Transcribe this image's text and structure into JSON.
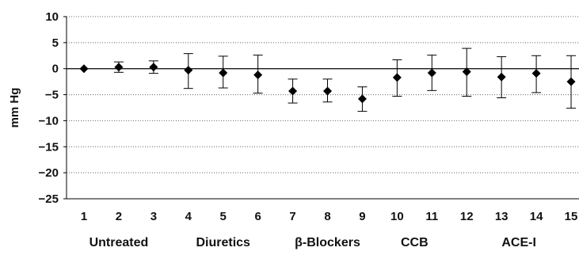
{
  "chart_data": {
    "type": "scatter",
    "title": "",
    "xlabel": "",
    "ylabel": "mm Hg",
    "ylim": [
      -25,
      10
    ],
    "yticks": [
      10,
      5,
      0,
      -5,
      -10,
      -15,
      -20,
      -25
    ],
    "ytick_labels": [
      "10",
      "5",
      "0",
      "−5",
      "−10",
      "−15",
      "−20",
      "−25"
    ],
    "grid": "horizontal dotted lines",
    "categories": [
      "1",
      "2",
      "3",
      "4",
      "5",
      "6",
      "7",
      "8",
      "9",
      "10",
      "11",
      "12",
      "13",
      "14",
      "15"
    ],
    "values": [
      0.0,
      0.3,
      0.3,
      -0.3,
      -0.8,
      -1.2,
      -4.3,
      -4.3,
      -5.8,
      -1.7,
      -0.8,
      -0.6,
      -1.6,
      -0.9,
      -2.5
    ],
    "error_low": [
      0.0,
      -0.7,
      -0.9,
      -3.8,
      -3.7,
      -4.7,
      -6.6,
      -6.4,
      -8.2,
      -5.3,
      -4.2,
      -5.3,
      -5.6,
      -4.6,
      -7.6
    ],
    "error_high": [
      0.0,
      1.3,
      1.5,
      2.9,
      2.4,
      2.6,
      -2.0,
      -2.0,
      -3.5,
      1.7,
      2.6,
      3.9,
      2.3,
      2.5,
      2.5
    ],
    "groups": [
      {
        "label": "Untreated",
        "categories": [
          "1",
          "2",
          "3"
        ]
      },
      {
        "label": "Diuretics",
        "categories": [
          "4",
          "5",
          "6"
        ]
      },
      {
        "label": "β-Blockers",
        "categories": [
          "7",
          "8",
          "9"
        ]
      },
      {
        "label": "CCB",
        "categories": [
          "10",
          "11"
        ]
      },
      {
        "label": "ACE-I",
        "categories": [
          "12",
          "13",
          "14",
          "15"
        ]
      }
    ],
    "marker": "diamond",
    "color": "#000000"
  }
}
